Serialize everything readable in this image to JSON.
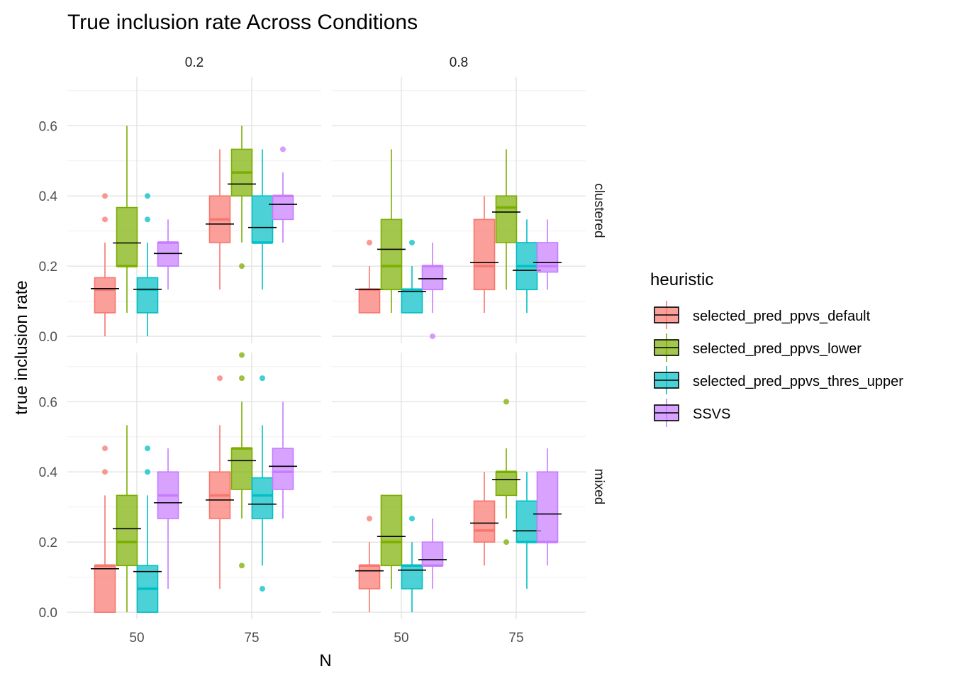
{
  "chart_data": {
    "type": "boxplot",
    "title": "True inclusion rate Across Conditions",
    "xlabel": "N",
    "ylabel": "true inclusion rate",
    "x_categories": [
      "50",
      "75"
    ],
    "y_ticks": [
      "0.0",
      "0.2",
      "0.4",
      "0.6"
    ],
    "ylim": [
      -0.02,
      0.74
    ],
    "facet_cols": [
      "0.2",
      "0.8"
    ],
    "facet_rows": [
      "clustered",
      "mixed"
    ],
    "legend": {
      "title": "heuristic",
      "position": "right",
      "entries": [
        "selected_pred_ppvs_default",
        "selected_pred_ppvs_lower",
        "selected_pred_ppvs_thres_upper",
        "SSVS"
      ]
    },
    "colors": {
      "selected_pred_ppvs_default": "#F8766D",
      "selected_pred_ppvs_lower": "#7CAE00",
      "selected_pred_ppvs_thres_upper": "#00BFC4",
      "SSVS": "#C77CFF"
    },
    "mean_marker": "black horizontal line",
    "grid": true,
    "panels": [
      {
        "col": "0.2",
        "row": "clustered",
        "groups": [
          {
            "x": "50",
            "heuristic": "selected_pred_ppvs_default",
            "min": 0.0,
            "q1": 0.067,
            "median": 0.133,
            "q3": 0.167,
            "max": 0.267,
            "mean": 0.136,
            "outliers": [
              0.333,
              0.4
            ]
          },
          {
            "x": "50",
            "heuristic": "selected_pred_ppvs_lower",
            "min": 0.067,
            "q1": 0.2,
            "median": 0.2,
            "q3": 0.367,
            "max": 0.6,
            "mean": 0.266,
            "outliers": []
          },
          {
            "x": "50",
            "heuristic": "selected_pred_ppvs_thres_upper",
            "min": 0.0,
            "q1": 0.067,
            "median": 0.133,
            "q3": 0.167,
            "max": 0.267,
            "mean": 0.134,
            "outliers": [
              0.333,
              0.4
            ]
          },
          {
            "x": "50",
            "heuristic": "SSVS",
            "min": 0.133,
            "q1": 0.2,
            "median": 0.267,
            "q3": 0.267,
            "max": 0.333,
            "mean": 0.236,
            "outliers": []
          },
          {
            "x": "75",
            "heuristic": "selected_pred_ppvs_default",
            "min": 0.133,
            "q1": 0.267,
            "median": 0.333,
            "q3": 0.4,
            "max": 0.533,
            "mean": 0.32,
            "outliers": []
          },
          {
            "x": "75",
            "heuristic": "selected_pred_ppvs_lower",
            "min": 0.267,
            "q1": 0.4,
            "median": 0.467,
            "q3": 0.533,
            "max": 0.6,
            "mean": 0.434,
            "outliers": [
              0.2
            ]
          },
          {
            "x": "75",
            "heuristic": "selected_pred_ppvs_thres_upper",
            "min": 0.133,
            "q1": 0.267,
            "median": 0.267,
            "q3": 0.4,
            "max": 0.533,
            "mean": 0.31,
            "outliers": []
          },
          {
            "x": "75",
            "heuristic": "SSVS",
            "min": 0.267,
            "q1": 0.333,
            "median": 0.4,
            "q3": 0.4,
            "max": 0.467,
            "mean": 0.376,
            "outliers": [
              0.533
            ]
          }
        ]
      },
      {
        "col": "0.8",
        "row": "clustered",
        "groups": [
          {
            "x": "50",
            "heuristic": "selected_pred_ppvs_default",
            "min": 0.067,
            "q1": 0.067,
            "median": 0.133,
            "q3": 0.133,
            "max": 0.2,
            "mean": 0.134,
            "outliers": [
              0.267
            ]
          },
          {
            "x": "50",
            "heuristic": "selected_pred_ppvs_lower",
            "min": 0.067,
            "q1": 0.133,
            "median": 0.2,
            "q3": 0.333,
            "max": 0.533,
            "mean": 0.248,
            "outliers": []
          },
          {
            "x": "50",
            "heuristic": "selected_pred_ppvs_thres_upper",
            "min": 0.067,
            "q1": 0.067,
            "median": 0.133,
            "q3": 0.133,
            "max": 0.2,
            "mean": 0.128,
            "outliers": [
              0.267
            ]
          },
          {
            "x": "50",
            "heuristic": "SSVS",
            "min": 0.067,
            "q1": 0.133,
            "median": 0.2,
            "q3": 0.2,
            "max": 0.267,
            "mean": 0.164,
            "outliers": [
              0.0
            ]
          },
          {
            "x": "75",
            "heuristic": "selected_pred_ppvs_default",
            "min": 0.067,
            "q1": 0.133,
            "median": 0.2,
            "q3": 0.333,
            "max": 0.4,
            "mean": 0.21,
            "outliers": []
          },
          {
            "x": "75",
            "heuristic": "selected_pred_ppvs_lower",
            "min": 0.133,
            "q1": 0.267,
            "median": 0.367,
            "q3": 0.4,
            "max": 0.533,
            "mean": 0.354,
            "outliers": []
          },
          {
            "x": "75",
            "heuristic": "selected_pred_ppvs_thres_upper",
            "min": 0.067,
            "q1": 0.133,
            "median": 0.2,
            "q3": 0.267,
            "max": 0.333,
            "mean": 0.188,
            "outliers": []
          },
          {
            "x": "75",
            "heuristic": "SSVS",
            "min": 0.133,
            "q1": 0.183,
            "median": 0.2,
            "q3": 0.267,
            "max": 0.333,
            "mean": 0.21,
            "outliers": []
          }
        ]
      },
      {
        "col": "0.2",
        "row": "mixed",
        "groups": [
          {
            "x": "50",
            "heuristic": "selected_pred_ppvs_default",
            "min": 0.0,
            "q1": 0.0,
            "median": 0.133,
            "q3": 0.133,
            "max": 0.333,
            "mean": 0.124,
            "outliers": [
              0.4,
              0.467
            ]
          },
          {
            "x": "50",
            "heuristic": "selected_pred_ppvs_lower",
            "min": 0.0,
            "q1": 0.133,
            "median": 0.2,
            "q3": 0.333,
            "max": 0.533,
            "mean": 0.238,
            "outliers": []
          },
          {
            "x": "50",
            "heuristic": "selected_pred_ppvs_thres_upper",
            "min": 0.0,
            "q1": 0.0,
            "median": 0.067,
            "q3": 0.133,
            "max": 0.333,
            "mean": 0.116,
            "outliers": [
              0.4,
              0.467
            ]
          },
          {
            "x": "50",
            "heuristic": "SSVS",
            "min": 0.067,
            "q1": 0.267,
            "median": 0.333,
            "q3": 0.4,
            "max": 0.467,
            "mean": 0.312,
            "outliers": []
          },
          {
            "x": "75",
            "heuristic": "selected_pred_ppvs_default",
            "min": 0.067,
            "q1": 0.267,
            "median": 0.333,
            "q3": 0.4,
            "max": 0.533,
            "mean": 0.32,
            "outliers": [
              0.667
            ]
          },
          {
            "x": "75",
            "heuristic": "selected_pred_ppvs_lower",
            "min": 0.267,
            "q1": 0.35,
            "median": 0.467,
            "q3": 0.467,
            "max": 0.6,
            "mean": 0.432,
            "outliers": [
              0.133,
              0.667,
              0.733
            ]
          },
          {
            "x": "75",
            "heuristic": "selected_pred_ppvs_thres_upper",
            "min": 0.133,
            "q1": 0.267,
            "median": 0.333,
            "q3": 0.383,
            "max": 0.533,
            "mean": 0.308,
            "outliers": [
              0.067,
              0.667
            ]
          },
          {
            "x": "75",
            "heuristic": "SSVS",
            "min": 0.267,
            "q1": 0.35,
            "median": 0.4,
            "q3": 0.467,
            "max": 0.6,
            "mean": 0.416,
            "outliers": []
          }
        ]
      },
      {
        "col": "0.8",
        "row": "mixed",
        "groups": [
          {
            "x": "50",
            "heuristic": "selected_pred_ppvs_default",
            "min": 0.0,
            "q1": 0.067,
            "median": 0.133,
            "q3": 0.133,
            "max": 0.2,
            "mean": 0.118,
            "outliers": [
              0.267
            ]
          },
          {
            "x": "50",
            "heuristic": "selected_pred_ppvs_lower",
            "min": 0.067,
            "q1": 0.133,
            "median": 0.2,
            "q3": 0.333,
            "max": 0.333,
            "mean": 0.216,
            "outliers": []
          },
          {
            "x": "50",
            "heuristic": "selected_pred_ppvs_thres_upper",
            "min": 0.0,
            "q1": 0.067,
            "median": 0.133,
            "q3": 0.133,
            "max": 0.2,
            "mean": 0.12,
            "outliers": [
              0.267
            ]
          },
          {
            "x": "50",
            "heuristic": "SSVS",
            "min": 0.067,
            "q1": 0.133,
            "median": 0.133,
            "q3": 0.2,
            "max": 0.267,
            "mean": 0.15,
            "outliers": []
          },
          {
            "x": "75",
            "heuristic": "selected_pred_ppvs_default",
            "min": 0.133,
            "q1": 0.2,
            "median": 0.233,
            "q3": 0.317,
            "max": 0.4,
            "mean": 0.254,
            "outliers": []
          },
          {
            "x": "75",
            "heuristic": "selected_pred_ppvs_lower",
            "min": 0.267,
            "q1": 0.333,
            "median": 0.4,
            "q3": 0.4,
            "max": 0.467,
            "mean": 0.378,
            "outliers": [
              0.2,
              0.6
            ]
          },
          {
            "x": "75",
            "heuristic": "selected_pred_ppvs_thres_upper",
            "min": 0.067,
            "q1": 0.2,
            "median": 0.2,
            "q3": 0.317,
            "max": 0.4,
            "mean": 0.232,
            "outliers": []
          },
          {
            "x": "75",
            "heuristic": "SSVS",
            "min": 0.133,
            "q1": 0.2,
            "median": 0.2,
            "q3": 0.4,
            "max": 0.467,
            "mean": 0.28,
            "outliers": []
          }
        ]
      }
    ]
  }
}
